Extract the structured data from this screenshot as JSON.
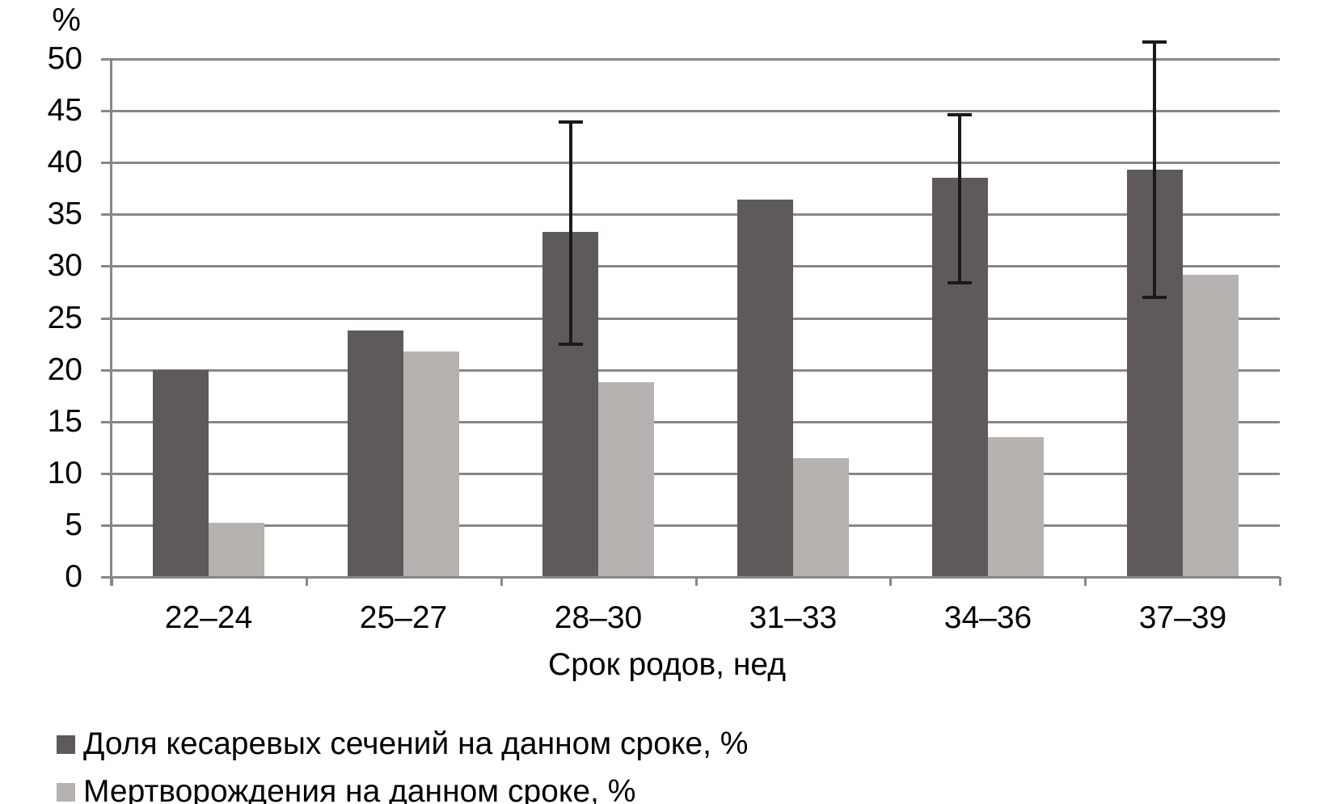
{
  "chart_data": {
    "type": "bar",
    "title": "",
    "ylabel": "%",
    "xlabel": "Срок родов, нед",
    "categories": [
      "22–24",
      "25–27",
      "28–30",
      "31–33",
      "34–36",
      "37–39"
    ],
    "series": [
      {
        "name": "Доля кесаревых сечений на данном сроке, %",
        "color": "#5E5A5A",
        "values": [
          20.0,
          23.8,
          33.3,
          36.4,
          38.5,
          39.3
        ],
        "error_bars": [
          null,
          null,
          {
            "low": 22.5,
            "high": 43.9
          },
          null,
          {
            "low": 28.4,
            "high": 44.6
          },
          {
            "low": 27.0,
            "high": 51.6
          }
        ]
      },
      {
        "name": "Мертворождения на данном сроке, %",
        "color": "#B5B2AF",
        "values": [
          5.2,
          21.8,
          18.8,
          11.5,
          13.5,
          29.2
        ]
      }
    ],
    "ylim": [
      0,
      50
    ],
    "yticks": [
      0,
      5,
      10,
      15,
      20,
      25,
      30,
      35,
      40,
      45,
      50
    ],
    "grid": true,
    "legend_position": "bottom-left",
    "axis_color": "#878787",
    "error_bar_color": "#1A1A1A",
    "text_color": "#000000",
    "background": "#FFFFFF"
  }
}
